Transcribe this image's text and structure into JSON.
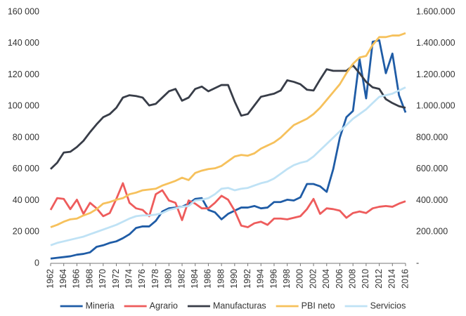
{
  "chart_data": {
    "type": "line",
    "legend": "bottom",
    "x": [
      1962,
      1963,
      1964,
      1965,
      1966,
      1967,
      1968,
      1969,
      1970,
      1971,
      1972,
      1973,
      1974,
      1975,
      1976,
      1977,
      1978,
      1979,
      1980,
      1981,
      1982,
      1983,
      1984,
      1985,
      1986,
      1987,
      1988,
      1989,
      1990,
      1991,
      1992,
      1993,
      1994,
      1995,
      1996,
      1997,
      1998,
      1999,
      2000,
      2001,
      2002,
      2003,
      2004,
      2005,
      2006,
      2007,
      2008,
      2009,
      2010,
      2011,
      2012,
      2013,
      2014,
      2015,
      2016
    ],
    "xlim": [
      1962,
      2016
    ],
    "xticks": [
      1962,
      1964,
      1966,
      1968,
      1970,
      1972,
      1974,
      1976,
      1978,
      1980,
      1982,
      1984,
      1986,
      1988,
      1990,
      1992,
      1994,
      1996,
      1998,
      2000,
      2002,
      2004,
      2006,
      2008,
      2010,
      2012,
      2014,
      2016
    ],
    "ylim": [
      0,
      160000
    ],
    "yticks": [
      0,
      {
        "value": 20000,
        "label": "20 000"
      },
      {
        "value": 40000,
        "label": "40 000"
      },
      {
        "value": 60000,
        "label": "60 000"
      },
      {
        "value": 80000,
        "label": "80 000"
      },
      {
        "value": 100000,
        "label": "100 000"
      },
      {
        "value": 120000,
        "label": "120 000"
      },
      {
        "value": 140000,
        "label": "140 000"
      },
      {
        "value": 160000,
        "label": "160 000"
      }
    ],
    "y2lim": [
      0,
      1600000
    ],
    "y2ticks": [
      {
        "value": 0,
        "label": "-"
      },
      {
        "value": 200000,
        "label": "200.000"
      },
      {
        "value": 400000,
        "label": "400.000"
      },
      {
        "value": 600000,
        "label": "600.000"
      },
      {
        "value": 800000,
        "label": "800.000"
      },
      {
        "value": 1000000,
        "label": "1.000.000"
      },
      {
        "value": 1200000,
        "label": "1.200.000"
      },
      {
        "value": 1400000,
        "label": "1.400.000"
      },
      {
        "value": 1600000,
        "label": "1.600.000"
      }
    ],
    "series": [
      {
        "name": "Mineria",
        "color": "#1f5ca6",
        "values": [
          3000,
          3500,
          4000,
          4500,
          5500,
          6000,
          7000,
          10500,
          11500,
          13000,
          14000,
          16000,
          18500,
          22500,
          23500,
          23500,
          27000,
          33000,
          35000,
          35500,
          36000,
          38000,
          41000,
          41500,
          34000,
          32500,
          28000,
          31500,
          33500,
          35500,
          35500,
          36500,
          35000,
          35500,
          39000,
          39000,
          40500,
          40000,
          42000,
          50500,
          50500,
          49000,
          45500,
          60000,
          80000,
          93000,
          97000,
          130000,
          105000,
          141000,
          142000,
          121000,
          133500,
          107000,
          96000
        ]
      },
      {
        "name": "Agrario",
        "color": "#ee5c5c",
        "values": [
          34000,
          41500,
          41000,
          34500,
          40500,
          31500,
          38500,
          35000,
          30000,
          32000,
          41000,
          51000,
          38500,
          35000,
          34000,
          30000,
          44000,
          46500,
          40000,
          38500,
          27500,
          40000,
          38000,
          35000,
          35000,
          38500,
          43000,
          40500,
          33500,
          24000,
          23000,
          25500,
          26500,
          24500,
          28500,
          28500,
          28000,
          29000,
          30000,
          34500,
          41000,
          31500,
          35000,
          34500,
          33500,
          29000,
          32000,
          33000,
          32000,
          35000,
          36000,
          36500,
          36000,
          38000,
          39500
        ]
      },
      {
        "name": "Manufacturas",
        "color": "#383d48",
        "values": [
          60000,
          64000,
          70500,
          71000,
          74000,
          78000,
          83500,
          88500,
          93000,
          95000,
          99000,
          105500,
          107000,
          106500,
          105500,
          100500,
          101500,
          105500,
          109500,
          111000,
          103500,
          105500,
          111000,
          112500,
          109500,
          111500,
          113500,
          113500,
          103000,
          94000,
          95000,
          100500,
          106000,
          107000,
          108000,
          110000,
          116500,
          115500,
          114000,
          110500,
          110000,
          117000,
          123500,
          122500,
          122500,
          122500,
          126000,
          121000,
          115500,
          112000,
          111000,
          104500,
          102000,
          100000,
          99000
        ]
      },
      {
        "name": "PBI neto",
        "color": "#f6c15c",
        "axis": "y2",
        "values": [
          230000,
          245000,
          265000,
          280000,
          285000,
          305000,
          320000,
          345000,
          380000,
          390000,
          405000,
          415000,
          440000,
          450000,
          465000,
          470000,
          475000,
          495000,
          510000,
          525000,
          545000,
          530000,
          575000,
          590000,
          600000,
          605000,
          620000,
          650000,
          680000,
          690000,
          685000,
          700000,
          730000,
          750000,
          770000,
          800000,
          840000,
          880000,
          900000,
          920000,
          950000,
          990000,
          1040000,
          1090000,
          1140000,
          1210000,
          1270000,
          1310000,
          1320000,
          1390000,
          1440000,
          1440000,
          1450000,
          1450000,
          1465000
        ]
      },
      {
        "name": "Servicios",
        "color": "#bfe2f5",
        "axis": "y2",
        "values": [
          115000,
          130000,
          140000,
          150000,
          160000,
          170000,
          185000,
          200000,
          215000,
          230000,
          245000,
          265000,
          285000,
          300000,
          305000,
          305000,
          310000,
          320000,
          340000,
          350000,
          360000,
          365000,
          400000,
          405000,
          415000,
          440000,
          475000,
          480000,
          465000,
          475000,
          480000,
          495000,
          510000,
          520000,
          540000,
          570000,
          600000,
          625000,
          640000,
          650000,
          680000,
          720000,
          760000,
          800000,
          840000,
          880000,
          920000,
          950000,
          980000,
          1020000,
          1060000,
          1070000,
          1080000,
          1100000,
          1120000
        ]
      }
    ]
  }
}
